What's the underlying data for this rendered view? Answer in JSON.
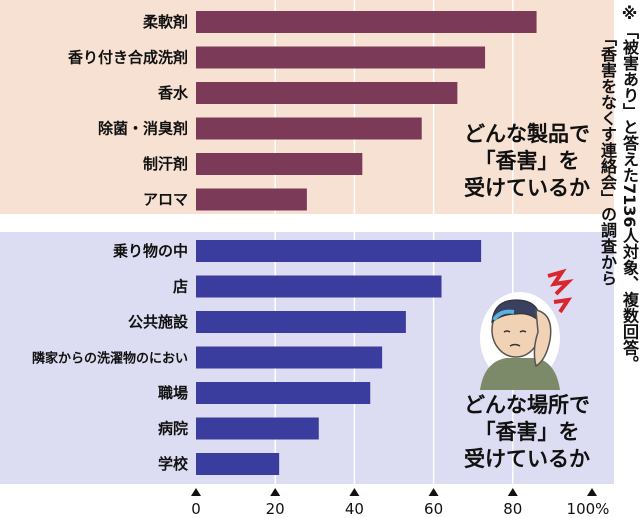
{
  "note": {
    "line1": "※「被害あり」と答えた7136人対象、複数回答。",
    "line2": "「香害をなくす連絡会」の調査から"
  },
  "chart_data": [
    {
      "type": "bar",
      "orientation": "horizontal",
      "title_lines": [
        "どんな製品で",
        "「香害」を",
        "受けているか"
      ],
      "categories": [
        "柔軟剤",
        "香り付き合成洗剤",
        "香水",
        "除菌・消臭剤",
        "制汗剤",
        "アロマ"
      ],
      "values": [
        86,
        73,
        66,
        57,
        42,
        28
      ],
      "xlim": [
        0,
        100
      ],
      "bar_color": "#7a3a58",
      "background": "#f7e1d3",
      "grid": true
    },
    {
      "type": "bar",
      "orientation": "horizontal",
      "title_lines": [
        "どんな場所で",
        "「香害」を",
        "受けているか"
      ],
      "categories": [
        "乗り物の中",
        "店",
        "公共施設",
        "隣家からの洗濯物のにおい",
        "職場",
        "病院",
        "学校"
      ],
      "values": [
        72,
        62,
        53,
        47,
        44,
        31,
        21
      ],
      "xlim": [
        0,
        100
      ],
      "bar_color": "#3a3d9e",
      "background": "#dcdcf2",
      "grid": true
    }
  ],
  "x_axis": {
    "ticks": [
      "0",
      "20",
      "40",
      "60",
      "80",
      "100%"
    ]
  },
  "illustration": "headache-person-icon"
}
